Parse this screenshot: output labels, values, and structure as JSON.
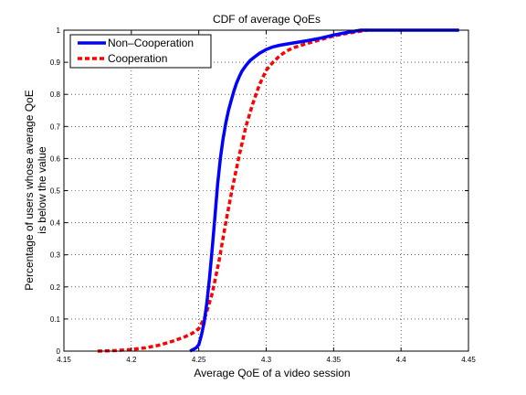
{
  "chart_data": {
    "type": "line",
    "title": "CDF of average QoEs",
    "xlabel": "Average QoE of a video session",
    "ylabel_lines": [
      "Percentage of users whose average QoE",
      "is below the value"
    ],
    "xlim": [
      4.15,
      4.45
    ],
    "ylim": [
      0,
      1
    ],
    "x_ticks": [
      "4.15",
      "4.2",
      "4.25",
      "4.3",
      "4.35",
      "4.4",
      "4.45"
    ],
    "y_ticks": [
      "0",
      "0.1",
      "0.2",
      "0.3",
      "0.4",
      "0.5",
      "0.6",
      "0.7",
      "0.8",
      "0.9",
      "1"
    ],
    "grid": true,
    "legend_position": "top-left",
    "series": [
      {
        "name": "Non–Cooperation",
        "color": "#0000ff",
        "style": "solid",
        "x": [
          4.2435,
          4.248,
          4.25,
          4.252,
          4.254,
          4.256,
          4.258,
          4.26,
          4.262,
          4.264,
          4.266,
          4.268,
          4.27,
          4.272,
          4.274,
          4.276,
          4.278,
          4.28,
          4.282,
          4.285,
          4.288,
          4.291,
          4.295,
          4.3,
          4.305,
          4.31,
          4.32,
          4.33,
          4.34,
          4.35,
          4.36,
          4.37,
          4.4,
          4.443
        ],
        "y": [
          0.0,
          0.01,
          0.02,
          0.05,
          0.09,
          0.15,
          0.23,
          0.32,
          0.42,
          0.52,
          0.6,
          0.66,
          0.71,
          0.75,
          0.78,
          0.81,
          0.835,
          0.855,
          0.872,
          0.89,
          0.905,
          0.915,
          0.928,
          0.94,
          0.948,
          0.953,
          0.96,
          0.967,
          0.975,
          0.985,
          0.993,
          1.0,
          1.0,
          1.0
        ]
      },
      {
        "name": "Cooperation",
        "color": "#ff0000",
        "style": "dashed",
        "x": [
          4.175,
          4.19,
          4.2,
          4.21,
          4.22,
          4.23,
          4.24,
          4.245,
          4.25,
          4.255,
          4.26,
          4.265,
          4.27,
          4.275,
          4.28,
          4.285,
          4.29,
          4.295,
          4.3,
          4.305,
          4.31,
          4.315,
          4.32,
          4.33,
          4.34,
          4.35,
          4.36,
          4.37,
          4.375
        ],
        "y": [
          0.0,
          0.002,
          0.005,
          0.01,
          0.018,
          0.03,
          0.045,
          0.055,
          0.07,
          0.11,
          0.18,
          0.28,
          0.4,
          0.51,
          0.61,
          0.7,
          0.77,
          0.83,
          0.875,
          0.9,
          0.92,
          0.935,
          0.945,
          0.958,
          0.97,
          0.982,
          0.99,
          0.997,
          1.0
        ]
      }
    ]
  }
}
